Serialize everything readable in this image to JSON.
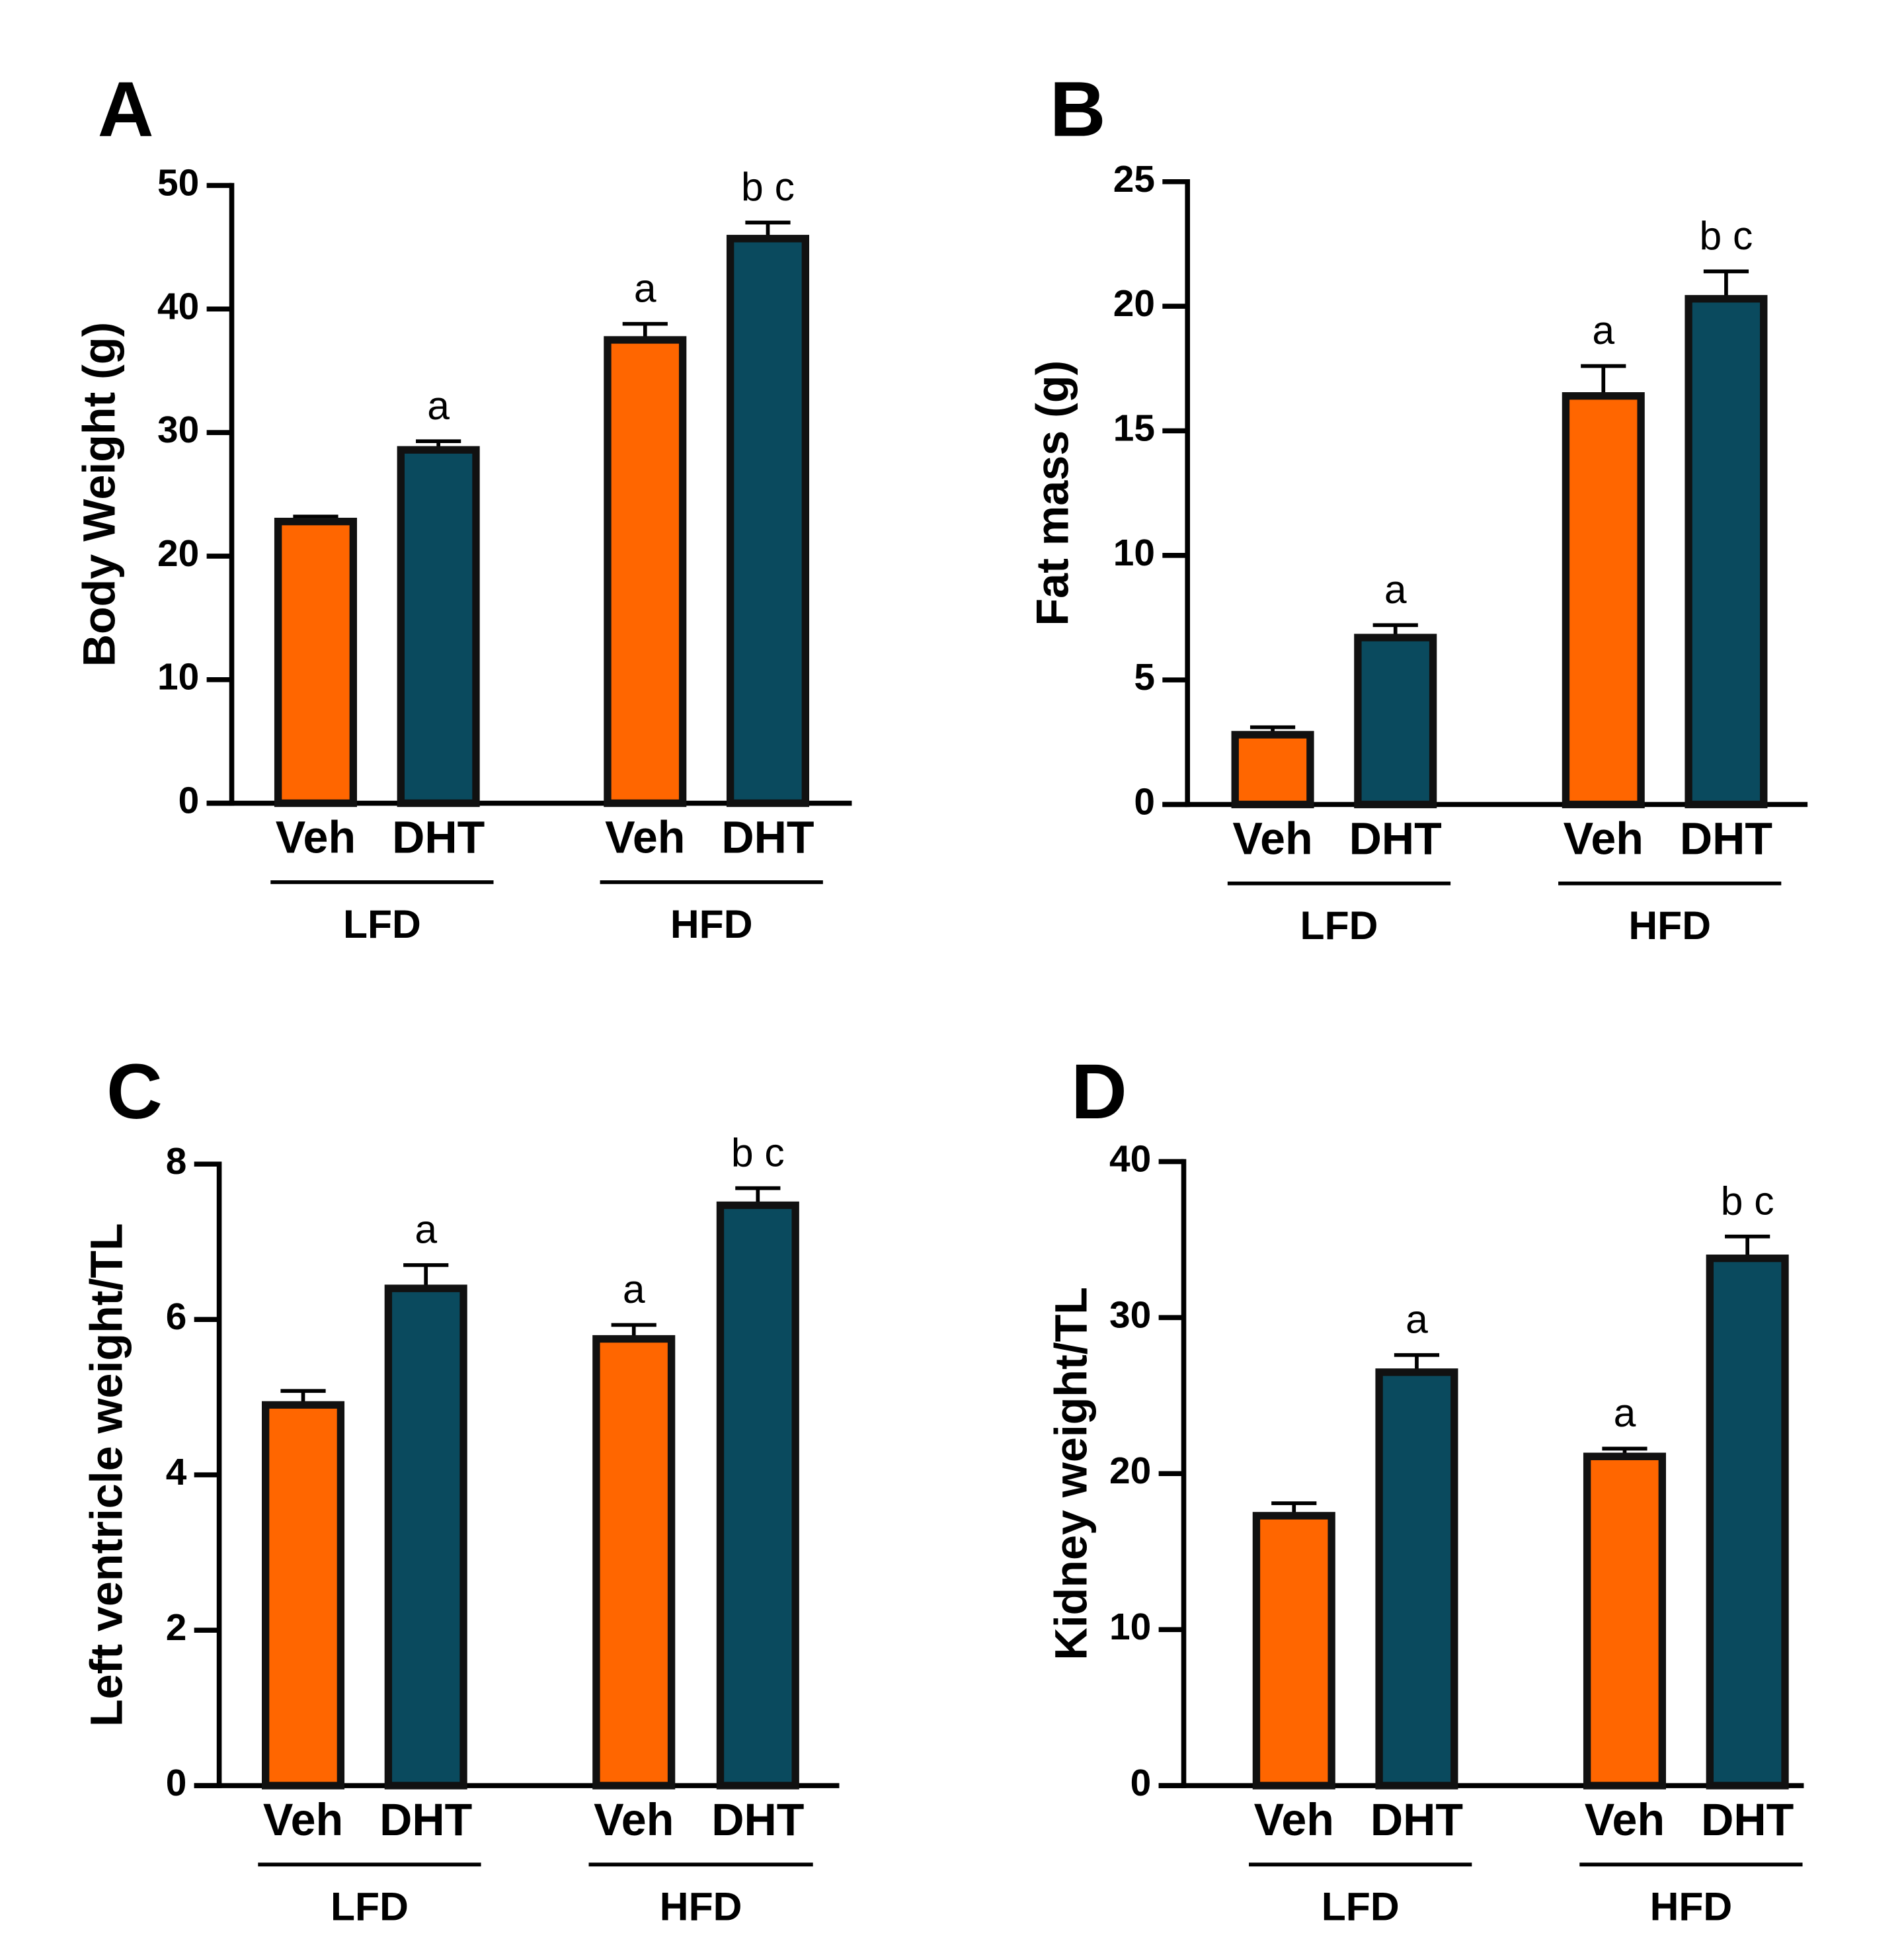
{
  "chart_data": [
    {
      "type": "bar",
      "panel": "A",
      "y_label": "Body Weight (g)",
      "categories": [
        "Veh",
        "DHT",
        "Veh",
        "DHT"
      ],
      "groups": [
        "LFD",
        "HFD"
      ],
      "values": [
        22.8,
        28.6,
        37.5,
        45.7
      ],
      "errors": [
        0.4,
        0.7,
        1.3,
        1.3
      ],
      "annotations": [
        null,
        "a",
        "a",
        "b c"
      ],
      "colors": [
        "#ff6600",
        "#0a4a5e",
        "#ff6600",
        "#0a4a5e"
      ],
      "ylim": [
        0,
        50
      ],
      "yticks": [
        0,
        10,
        20,
        30,
        40,
        50
      ]
    },
    {
      "type": "bar",
      "panel": "B",
      "y_label": "Fat mass (g)",
      "categories": [
        "Veh",
        "DHT",
        "Veh",
        "DHT"
      ],
      "groups": [
        "LFD",
        "HFD"
      ],
      "values": [
        2.8,
        6.7,
        16.4,
        20.3
      ],
      "errors": [
        0.3,
        0.5,
        1.2,
        1.1
      ],
      "annotations": [
        null,
        "a",
        "a",
        "b c"
      ],
      "colors": [
        "#ff6600",
        "#0a4a5e",
        "#ff6600",
        "#0a4a5e"
      ],
      "ylim": [
        0,
        25
      ],
      "yticks": [
        0,
        5,
        10,
        15,
        20,
        25
      ]
    },
    {
      "type": "bar",
      "panel": "C",
      "y_label": "Left ventricle weight/TL",
      "categories": [
        "Veh",
        "DHT",
        "Veh",
        "DHT"
      ],
      "groups": [
        "LFD",
        "HFD"
      ],
      "values": [
        4.9,
        6.4,
        5.75,
        7.47
      ],
      "errors": [
        0.18,
        0.3,
        0.18,
        0.22
      ],
      "annotations": [
        null,
        "a",
        "a",
        "b c"
      ],
      "colors": [
        "#ff6600",
        "#0a4a5e",
        "#ff6600",
        "#0a4a5e"
      ],
      "ylim": [
        0,
        8
      ],
      "yticks": [
        0,
        2,
        4,
        6,
        8
      ]
    },
    {
      "type": "bar",
      "panel": "D",
      "y_label": "Kidney weight/TL",
      "categories": [
        "Veh",
        "DHT",
        "Veh",
        "DHT"
      ],
      "groups": [
        "LFD",
        "HFD"
      ],
      "values": [
        17.3,
        26.5,
        21.1,
        33.8
      ],
      "errors": [
        0.8,
        1.1,
        0.5,
        1.4
      ],
      "annotations": [
        null,
        "a",
        "a",
        "b c"
      ],
      "colors": [
        "#ff6600",
        "#0a4a5e",
        "#ff6600",
        "#0a4a5e"
      ],
      "ylim": [
        0,
        40
      ],
      "yticks": [
        0,
        10,
        20,
        30,
        40
      ]
    }
  ]
}
